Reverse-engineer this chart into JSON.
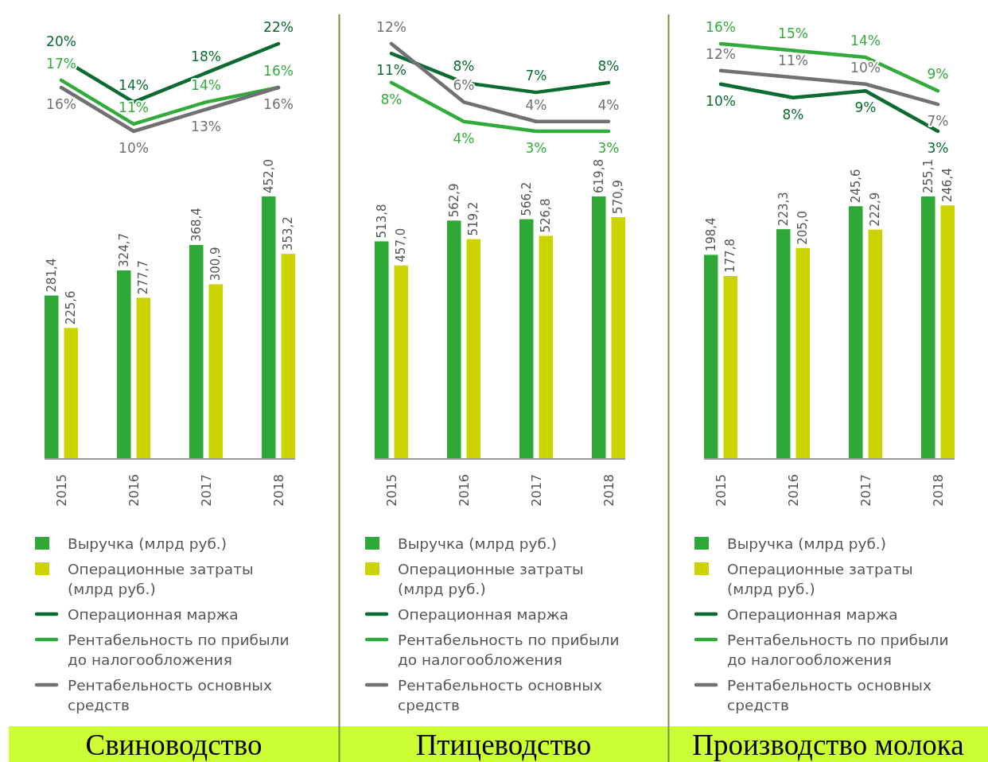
{
  "chart_data": [
    {
      "type": "line",
      "categories": [
        null,
        null,
        null,
        null
      ],
      "series": [
        {
          "name": "Операционная маржа",
          "color": "#0b6b30",
          "values": [
            20,
            14,
            18,
            22
          ],
          "value_labels": [
            "20%",
            "14%",
            "18%",
            "22%"
          ]
        },
        {
          "name": "Рентабельность по прибыли до налогообложения",
          "color": "#33aa3c",
          "values": [
            17,
            11,
            14,
            16
          ],
          "value_labels": [
            "17%",
            "11%",
            "14%",
            "16%"
          ]
        },
        {
          "name": "Рентабельность основных средств",
          "color": "#707075",
          "values": [
            16,
            10,
            13,
            16
          ],
          "value_labels": [
            "16%",
            "10%",
            "13%",
            "16%"
          ]
        }
      ],
      "tick_labels": false,
      "legend": "bottom"
    },
    {
      "type": "bar",
      "title": "Свиноводство",
      "categories": [
        "2015",
        "2016",
        "2017",
        "2018"
      ],
      "series": [
        {
          "name": "Выручка (млрд руб.)",
          "color": "#2ea836",
          "values": [
            281.4,
            324.7,
            368.4,
            452.0
          ],
          "value_labels": [
            "281,4",
            "324,7",
            "368,4",
            "452,0"
          ]
        },
        {
          "name": "Операционные затраты (млрд руб.)",
          "color": "#ccd400",
          "values": [
            225.6,
            277.7,
            300.9,
            353.2
          ],
          "value_labels": [
            "225,6",
            "277,7",
            "300,9",
            "353,2"
          ]
        }
      ],
      "tick_labels": "x",
      "legend": "bottom"
    },
    {
      "type": "line",
      "categories": [
        null,
        null,
        null,
        null
      ],
      "series": [
        {
          "name": "Операционная маржа",
          "color": "#0b6b30",
          "values": [
            11,
            8,
            7,
            8
          ],
          "value_labels": [
            "11%",
            "8%",
            "7%",
            "8%"
          ]
        },
        {
          "name": "Рентабельность по прибыли до налогообложения",
          "color": "#33aa3c",
          "values": [
            8,
            4,
            3,
            3
          ],
          "value_labels": [
            "8%",
            "4%",
            "3%",
            "3%"
          ]
        },
        {
          "name": "Рентабельность основных средств",
          "color": "#707075",
          "values": [
            12,
            6,
            4,
            4
          ],
          "value_labels": [
            "12%",
            "6%",
            "4%",
            "4%"
          ]
        }
      ],
      "tick_labels": false,
      "legend": "bottom"
    },
    {
      "type": "bar",
      "title": "Птицеводство",
      "categories": [
        "2015",
        "2016",
        "2017",
        "2018"
      ],
      "series": [
        {
          "name": "Выручка (млрд руб.)",
          "color": "#2ea836",
          "values": [
            513.8,
            562.9,
            566.2,
            619.8
          ],
          "value_labels": [
            "513,8",
            "562,9",
            "566,2",
            "619,8"
          ]
        },
        {
          "name": "Операционные затраты (млрд руб.)",
          "color": "#ccd400",
          "values": [
            457.0,
            519.2,
            526.8,
            570.9
          ],
          "value_labels": [
            "457,0",
            "519,2",
            "526,8",
            "570,9"
          ]
        }
      ],
      "tick_labels": "x",
      "legend": "bottom"
    },
    {
      "type": "line",
      "categories": [
        null,
        null,
        null,
        null
      ],
      "series": [
        {
          "name": "Операционная маржа",
          "color": "#0b6b30",
          "values": [
            10,
            8,
            9,
            3
          ],
          "value_labels": [
            "10%",
            "8%",
            "9%",
            "3%"
          ]
        },
        {
          "name": "Рентабельность по прибыли до налогообложения",
          "color": "#33aa3c",
          "values": [
            16,
            15,
            14,
            9
          ],
          "value_labels": [
            "16%",
            "15%",
            "14%",
            "9%"
          ]
        },
        {
          "name": "Рентабельность основных средств",
          "color": "#707075",
          "values": [
            12,
            11,
            10,
            7
          ],
          "value_labels": [
            "12%",
            "11%",
            "10%",
            "7%"
          ]
        }
      ],
      "tick_labels": false,
      "legend": "bottom"
    },
    {
      "type": "bar",
      "title": "Производство молока",
      "categories": [
        "2015",
        "2016",
        "2017",
        "2018"
      ],
      "series": [
        {
          "name": "Выручка (млрд руб.)",
          "color": "#2ea836",
          "values": [
            198.4,
            223.3,
            245.6,
            255.1
          ],
          "value_labels": [
            "198,4",
            "223,3",
            "245,6",
            "255,1"
          ]
        },
        {
          "name": "Операционные затраты (млрд руб.)",
          "color": "#ccd400",
          "values": [
            177.8,
            205.0,
            222.9,
            246.4
          ],
          "value_labels": [
            "177,8",
            "205,0",
            "222,9",
            "246,4"
          ]
        }
      ],
      "tick_labels": "x",
      "legend": "bottom"
    }
  ]
}
